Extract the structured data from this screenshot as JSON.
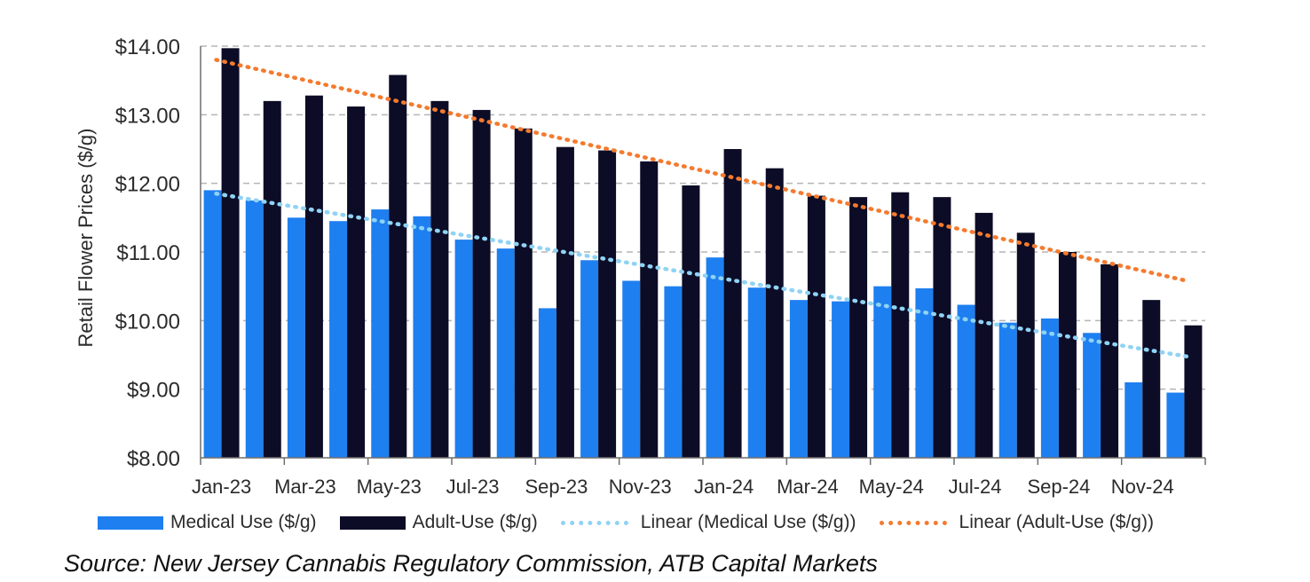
{
  "chart_data": {
    "type": "bar",
    "ylabel": "Retail Flower Prices ($/g)",
    "ylim": [
      8,
      14
    ],
    "yticks": [
      "$8.00",
      "$9.00",
      "$10.00",
      "$11.00",
      "$12.00",
      "$13.00",
      "$14.00"
    ],
    "ytick_values": [
      8,
      9,
      10,
      11,
      12,
      13,
      14
    ],
    "grid": "horizontal dashed",
    "categories": [
      "Jan-23",
      "Feb-23",
      "Mar-23",
      "Apr-23",
      "May-23",
      "Jun-23",
      "Jul-23",
      "Aug-23",
      "Sep-23",
      "Oct-23",
      "Nov-23",
      "Dec-23",
      "Jan-24",
      "Feb-24",
      "Mar-24",
      "Apr-24",
      "May-24",
      "Jun-24",
      "Jul-24",
      "Aug-24",
      "Sep-24",
      "Oct-24",
      "Nov-24",
      "Dec-24"
    ],
    "x_tick_labels": [
      "Jan-23",
      "Mar-23",
      "May-23",
      "Jul-23",
      "Sep-23",
      "Nov-23",
      "Jan-24",
      "Mar-24",
      "May-24",
      "Jul-24",
      "Sep-24",
      "Nov-24"
    ],
    "series": [
      {
        "name": "Medical Use ($/g)",
        "color": "#1e7ff0",
        "values": [
          11.9,
          11.75,
          11.5,
          11.45,
          11.62,
          11.52,
          11.18,
          11.05,
          10.18,
          10.88,
          10.58,
          10.5,
          10.92,
          10.48,
          10.3,
          10.28,
          10.5,
          10.47,
          10.23,
          9.97,
          10.03,
          9.82,
          9.1,
          8.95
        ]
      },
      {
        "name": "Adult-Use ($/g)",
        "color": "#0c0c26",
        "values": [
          13.97,
          13.2,
          13.28,
          13.12,
          13.58,
          13.2,
          13.07,
          12.8,
          12.53,
          12.48,
          12.32,
          11.97,
          12.5,
          12.22,
          11.82,
          11.8,
          11.87,
          11.8,
          11.57,
          11.28,
          11.0,
          10.82,
          10.3,
          9.93
        ]
      }
    ],
    "trendlines": [
      {
        "name": "Linear (Medical Use ($/g))",
        "color": "#8fd3f4",
        "start": 11.85,
        "end": 9.47
      },
      {
        "name": "Linear (Adult-Use ($/g))",
        "color": "#f47a2e",
        "start": 13.8,
        "end": 10.57
      }
    ],
    "legend_position": "bottom"
  },
  "source": "Source: New Jersey Cannabis Regulatory Commission, ATB Capital Markets"
}
